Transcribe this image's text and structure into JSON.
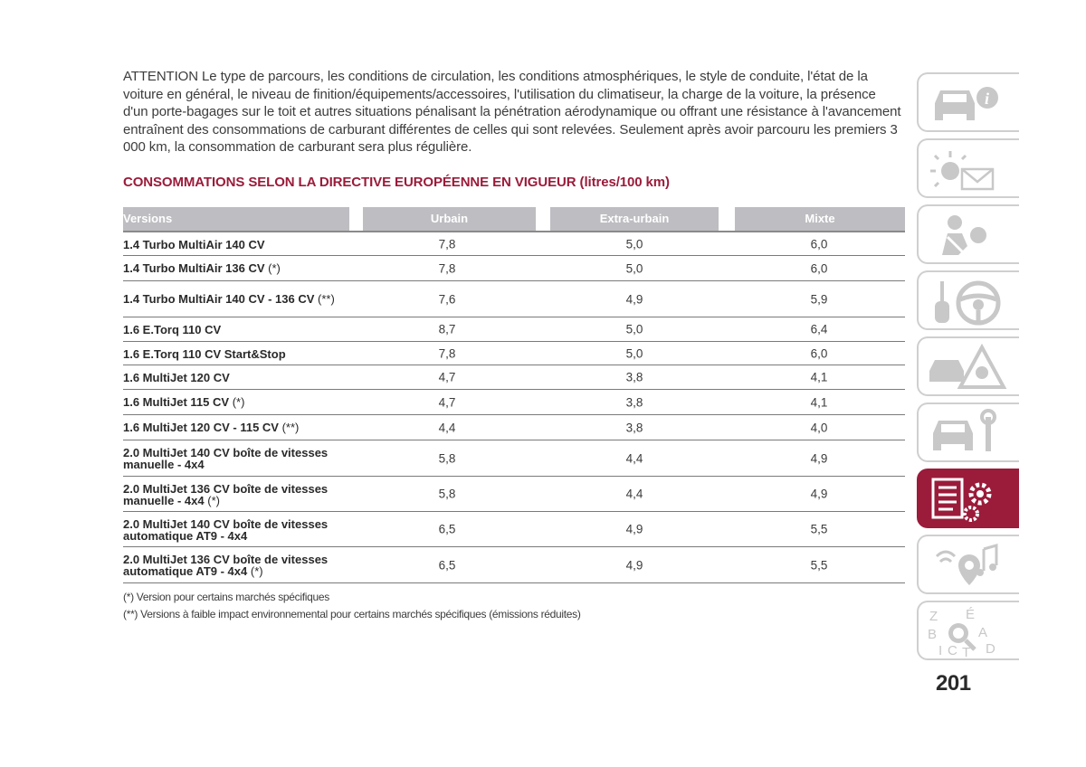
{
  "intro": "ATTENTION Le type de parcours, les conditions de circulation, les conditions atmosphériques, le style de conduite, l'état de la voiture en général, le niveau de finition/équipements/accessoires, l'utilisation du climatiseur, la charge de la voiture, la présence d'un porte-bagages sur le toit et autres situations pénalisant la pénétration aérodynamique ou offrant une résistance à l'avancement entraînent des consommations de carburant différentes de celles qui sont relevées. Seulement après avoir parcouru les premiers 3 000 km, la consommation de carburant sera plus régulière.",
  "section_title": "CONSOMMATIONS SELON LA DIRECTIVE EUROPÉENNE EN VIGUEUR (litres/100 km)",
  "table": {
    "headers": [
      "Versions",
      "Urbain",
      "Extra-urbain",
      "Mixte"
    ],
    "rows": [
      {
        "version": "1.4 Turbo MultiAir 140 CV",
        "note": "",
        "urbain": "7,8",
        "extra": "5,0",
        "mixte": "6,0"
      },
      {
        "version": "1.4 Turbo MultiAir 136 CV",
        "note": "(*)",
        "urbain": "7,8",
        "extra": "5,0",
        "mixte": "6,0"
      },
      {
        "version": "1.4 Turbo MultiAir 140 CV - 136 CV",
        "note": "(**)",
        "urbain": "7,6",
        "extra": "4,9",
        "mixte": "5,9"
      },
      {
        "version": "1.6 E.Torq 110 CV",
        "note": "",
        "urbain": "8,7",
        "extra": "5,0",
        "mixte": "6,4"
      },
      {
        "version": "1.6 E.Torq 110 CV Start&Stop",
        "note": "",
        "urbain": "7,8",
        "extra": "5,0",
        "mixte": "6,0"
      },
      {
        "version": "1.6 MultiJet 120 CV",
        "note": "",
        "urbain": "4,7",
        "extra": "3,8",
        "mixte": "4,1"
      },
      {
        "version": "1.6 MultiJet 115 CV",
        "note": "(*)",
        "urbain": "4,7",
        "extra": "3,8",
        "mixte": "4,1"
      },
      {
        "version": "1.6 MultiJet 120 CV - 115 CV",
        "note": "(**)",
        "urbain": "4,4",
        "extra": "3,8",
        "mixte": "4,0"
      },
      {
        "version": "2.0 MultiJet 140 CV boîte de vitesses manuelle - 4x4",
        "note": "",
        "urbain": "5,8",
        "extra": "4,4",
        "mixte": "4,9"
      },
      {
        "version": "2.0 MultiJet 136 CV boîte de vitesses manuelle - 4x4",
        "note": "(*)",
        "urbain": "5,8",
        "extra": "4,4",
        "mixte": "4,9"
      },
      {
        "version": "2.0 MultiJet 140 CV boîte de vitesses automatique AT9 - 4x4",
        "note": "",
        "urbain": "6,5",
        "extra": "4,9",
        "mixte": "5,5"
      },
      {
        "version": "2.0 MultiJet 136 CV boîte de vitesses automatique AT9 - 4x4",
        "note": "(*)",
        "urbain": "6,5",
        "extra": "4,9",
        "mixte": "5,5"
      }
    ]
  },
  "footnotes": [
    "(*) Version pour certains marchés spécifiques",
    "(**) Versions à faible impact environnemental pour certains marchés spécifiques (émissions réduites)"
  ],
  "sidebar": {
    "tabs": [
      {
        "icon": "car-info-icon"
      },
      {
        "icon": "lights-message-icon"
      },
      {
        "icon": "safety-airbag-icon"
      },
      {
        "icon": "key-steering-wheel-icon"
      },
      {
        "icon": "accident-warning-triangle-icon"
      },
      {
        "icon": "car-wrench-icon"
      },
      {
        "icon": "technical-data-gears-icon",
        "active": true
      },
      {
        "icon": "multimedia-music-icon"
      },
      {
        "icon": "alphabetical-index-icon",
        "letters": [
          "Z",
          "É",
          "B",
          "A",
          "I",
          "C",
          "T",
          "D"
        ]
      }
    ]
  },
  "page_number": "201",
  "colors": {
    "accent": "#9b1b3a",
    "header_bg": "#bdbdc2",
    "icon_gray": "#c8c8c8"
  }
}
